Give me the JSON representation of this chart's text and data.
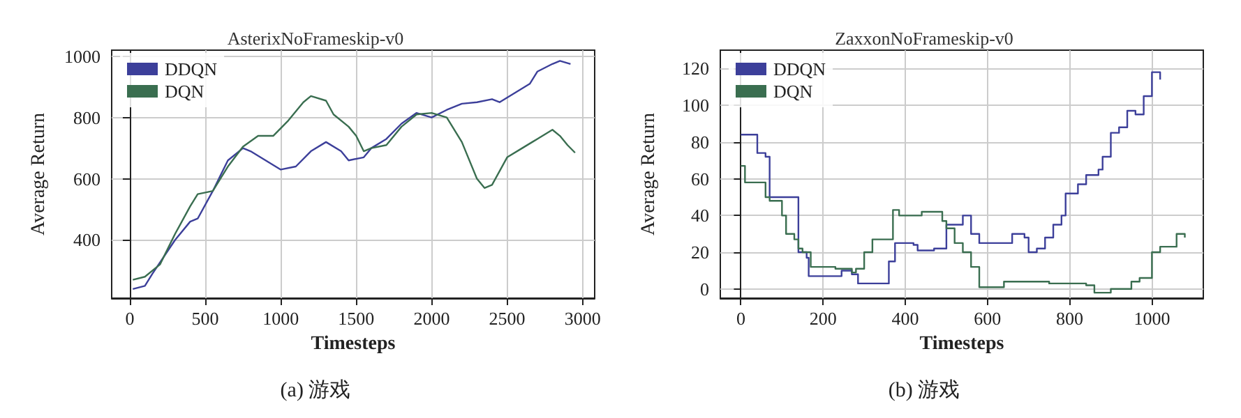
{
  "chart_data": [
    {
      "type": "line",
      "title": "AsterixNoFrameskip-v0",
      "xlabel": "Timesteps",
      "ylabel": "Average Return",
      "annotations": [
        "(a) 游戏"
      ],
      "xlim": [
        -120,
        3080
      ],
      "ylim": [
        210,
        1020
      ],
      "xticks": [
        0,
        500,
        1000,
        1500,
        2000,
        2500,
        3000
      ],
      "yticks": [
        400,
        600,
        800,
        1000
      ],
      "grid": true,
      "legend": "top left",
      "series": [
        {
          "name": "DDQN",
          "color": "#3c3f9a",
          "x": [
            20,
            100,
            150,
            300,
            400,
            450,
            550,
            650,
            750,
            800,
            900,
            1000,
            1100,
            1200,
            1300,
            1400,
            1450,
            1550,
            1600,
            1700,
            1800,
            1900,
            2000,
            2100,
            2200,
            2300,
            2400,
            2450,
            2550,
            2650,
            2700,
            2800,
            2850,
            2920
          ],
          "values": [
            240,
            250,
            290,
            400,
            460,
            470,
            560,
            660,
            700,
            690,
            660,
            630,
            640,
            690,
            720,
            690,
            660,
            670,
            700,
            730,
            780,
            815,
            800,
            825,
            845,
            850,
            860,
            850,
            880,
            910,
            950,
            975,
            985,
            975
          ]
        },
        {
          "name": "DQN",
          "color": "#3a6e50",
          "x": [
            20,
            100,
            200,
            300,
            400,
            450,
            550,
            650,
            750,
            850,
            950,
            1050,
            1150,
            1200,
            1300,
            1350,
            1450,
            1500,
            1550,
            1600,
            1700,
            1800,
            1900,
            2000,
            2100,
            2200,
            2300,
            2350,
            2400,
            2500,
            2600,
            2700,
            2800,
            2850,
            2900,
            2950
          ],
          "values": [
            270,
            280,
            320,
            420,
            510,
            550,
            560,
            640,
            705,
            740,
            740,
            790,
            850,
            870,
            855,
            810,
            770,
            740,
            690,
            700,
            710,
            770,
            810,
            815,
            800,
            720,
            600,
            570,
            580,
            670,
            700,
            730,
            760,
            740,
            710,
            685
          ]
        }
      ]
    },
    {
      "type": "step",
      "title": "ZaxxonNoFrameskip-v0",
      "xlabel": "Timesteps",
      "ylabel": "Average Return",
      "annotations": [
        "(b) 游戏"
      ],
      "xlim": [
        -50,
        1125
      ],
      "ylim": [
        -5,
        130
      ],
      "xticks": [
        0,
        200,
        400,
        600,
        800,
        1000
      ],
      "yticks": [
        0,
        20,
        40,
        60,
        80,
        100,
        120
      ],
      "grid": true,
      "legend": "top left",
      "series": [
        {
          "name": "DDQN",
          "color": "#3c3f9a",
          "x": [
            0,
            40,
            60,
            70,
            130,
            140,
            160,
            165,
            230,
            245,
            270,
            285,
            350,
            360,
            375,
            420,
            430,
            470,
            500,
            540,
            560,
            580,
            640,
            660,
            690,
            700,
            720,
            740,
            760,
            780,
            790,
            820,
            840,
            870,
            880,
            900,
            920,
            940,
            960,
            980,
            1000,
            1020
          ],
          "values": [
            84,
            74,
            72,
            50,
            50,
            20,
            17,
            7,
            7,
            10,
            8,
            3,
            3,
            15,
            25,
            24,
            21,
            22,
            35,
            40,
            30,
            25,
            25,
            30,
            28,
            20,
            22,
            28,
            35,
            40,
            52,
            57,
            62,
            65,
            72,
            85,
            88,
            97,
            95,
            105,
            118,
            114
          ]
        },
        {
          "name": "DQN",
          "color": "#3a6e50",
          "x": [
            0,
            10,
            50,
            60,
            70,
            100,
            110,
            130,
            140,
            150,
            170,
            230,
            270,
            280,
            300,
            320,
            370,
            385,
            440,
            490,
            500,
            520,
            540,
            560,
            580,
            640,
            750,
            840,
            860,
            900,
            950,
            970,
            1000,
            1020,
            1060,
            1080
          ],
          "values": [
            67,
            58,
            58,
            50,
            48,
            40,
            30,
            27,
            22,
            20,
            12,
            11,
            9,
            11,
            20,
            27,
            43,
            40,
            42,
            37,
            33,
            25,
            20,
            12,
            1,
            4,
            3,
            2,
            -2,
            0,
            4,
            6,
            20,
            23,
            30,
            28
          ]
        }
      ]
    }
  ]
}
